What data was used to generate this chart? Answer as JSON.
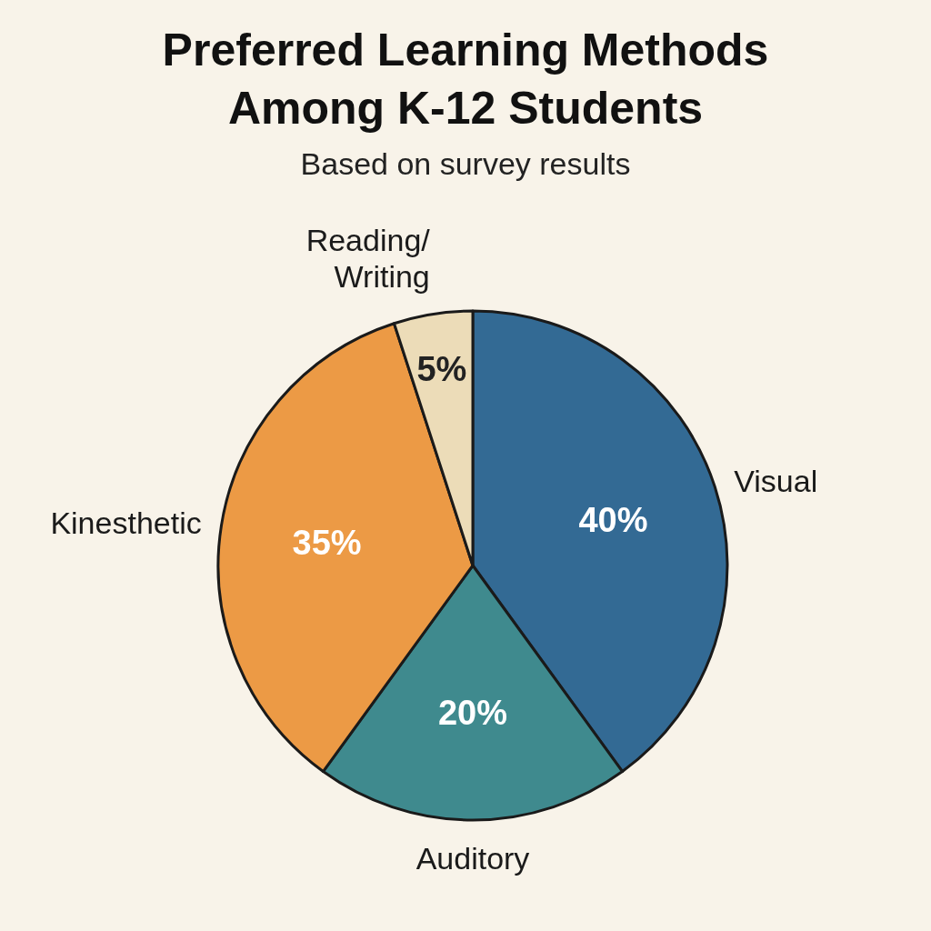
{
  "chart_data": {
    "type": "pie",
    "title": "Preferred Learning Methods\nAmong K-12 Students",
    "subtitle": "Based on survey results",
    "categories": [
      "Visual",
      "Auditory",
      "Kinesthetic",
      "Reading/\nWriting"
    ],
    "values": [
      40,
      20,
      35,
      5
    ],
    "value_labels": [
      "40%",
      "20%",
      "35%",
      "5%"
    ],
    "colors": [
      "#336a94",
      "#3f8a8e",
      "#ec9a45",
      "#ecdcb8"
    ]
  }
}
